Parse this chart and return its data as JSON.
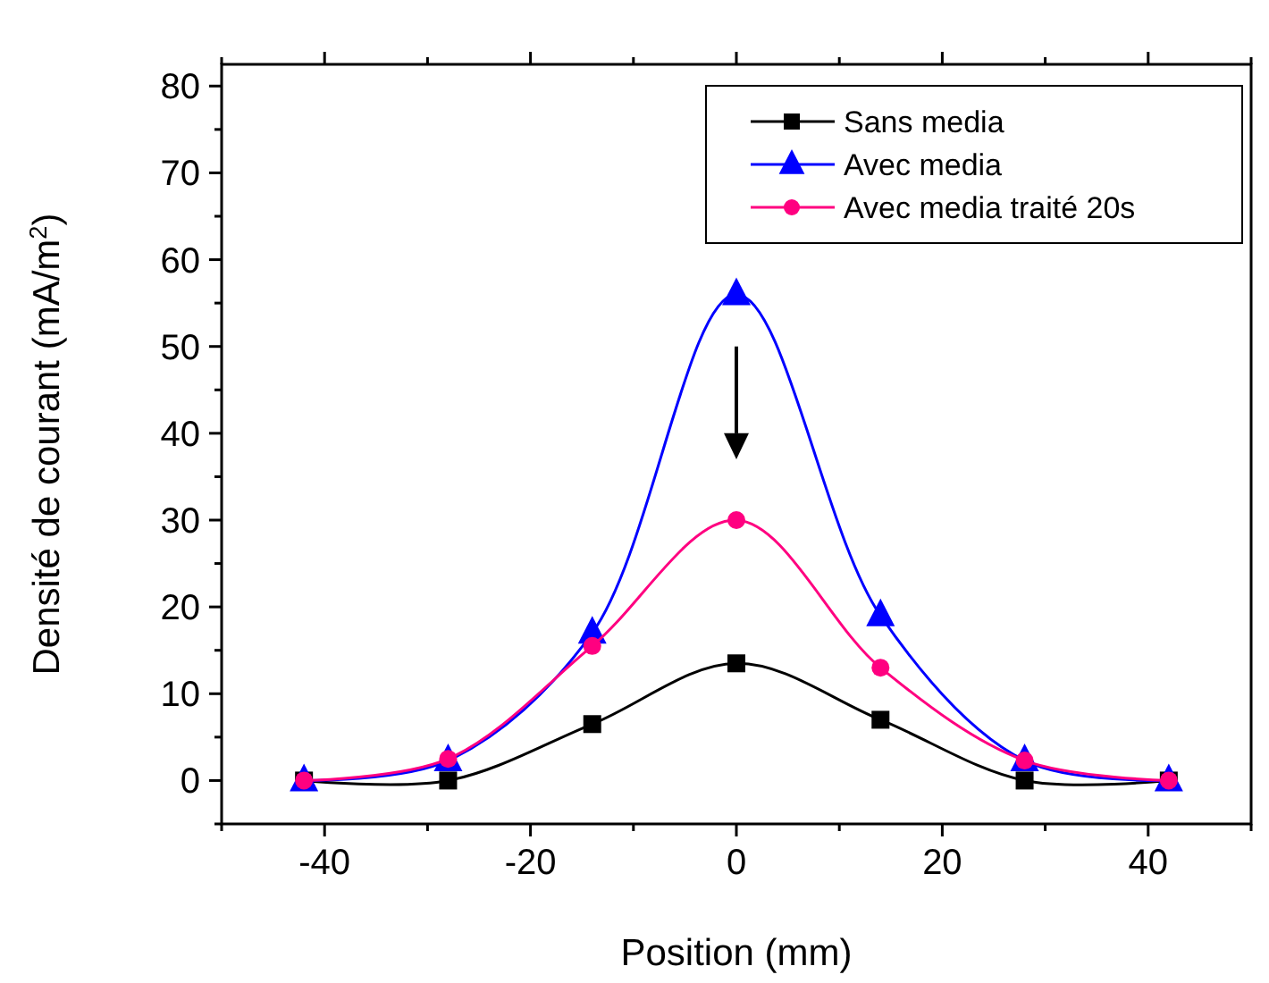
{
  "chart_data": {
    "type": "line",
    "xlabel": "Position (mm)",
    "ylabel": "Densité de courant (mA/m$^{2}$)",
    "x": [
      -42,
      -28,
      -14,
      0,
      14,
      28,
      42
    ],
    "series": [
      {
        "name": "Sans media",
        "color": "#000000",
        "marker": "square",
        "values": [
          0,
          0,
          6.5,
          13.5,
          7,
          0,
          0
        ]
      },
      {
        "name": "Avec media",
        "color": "#0000ff",
        "marker": "triangle",
        "values": [
          0,
          2.3,
          17,
          56,
          19,
          2.3,
          0
        ]
      },
      {
        "name": "Avec media traité 20s",
        "color": "#ff0080",
        "marker": "circle",
        "values": [
          0,
          2.5,
          15.5,
          30,
          13,
          2.3,
          0
        ]
      }
    ],
    "xlim": [
      -50,
      50
    ],
    "xticks": [
      {
        "value": -50,
        "label": null
      },
      -40,
      {
        "value": -30,
        "label": null
      },
      -20,
      {
        "value": -10,
        "label": null
      },
      0,
      {
        "value": 10,
        "label": null
      },
      20,
      {
        "value": 30,
        "label": null
      },
      40,
      {
        "value": 50,
        "label": null
      }
    ],
    "ylim": [
      -5,
      82.5
    ],
    "yticks": [
      {
        "value": -5,
        "label": null
      },
      0,
      {
        "value": 5,
        "label": null
      },
      10,
      {
        "value": 15,
        "label": null
      },
      20,
      {
        "value": 25,
        "label": null
      },
      30,
      {
        "value": 35,
        "label": null
      },
      40,
      {
        "value": 45,
        "label": null
      },
      50,
      {
        "value": 55,
        "label": null
      },
      60,
      {
        "value": 65,
        "label": null
      },
      70,
      {
        "value": 75,
        "label": null
      },
      80
    ],
    "grid": false,
    "legend": "top right",
    "line_style": "solid"
  }
}
